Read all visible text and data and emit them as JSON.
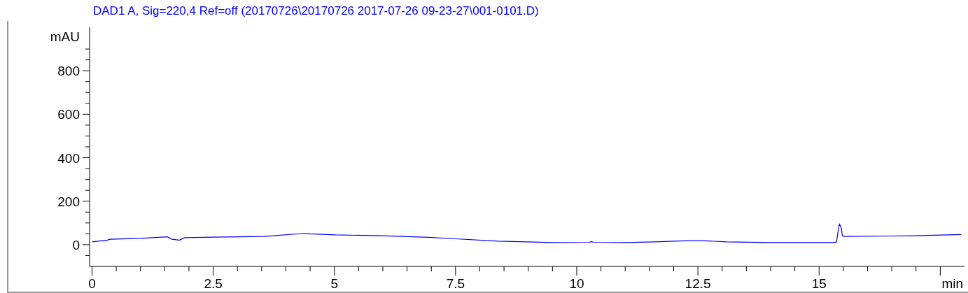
{
  "chart_data": {
    "type": "line",
    "title": "DAD1 A, Sig=220,4 Ref=off (20170726\\20170726 2017-07-26 09-23-27\\001-0101.D)",
    "xlabel": "min",
    "ylabel": "mAU",
    "series": [
      {
        "color": "#0000ff",
        "x": [
          0,
          0.32,
          0.37,
          1.0,
          1.56,
          1.65,
          1.81,
          1.9,
          2.5,
          3.55,
          4.37,
          4.5,
          5.02,
          5.98,
          6.94,
          7.5,
          8.38,
          9.49,
          10.25,
          10.3,
          10.35,
          11.02,
          11.6,
          12.22,
          12.65,
          13.09,
          14.0,
          15.29,
          15.36,
          15.4,
          15.42,
          15.46,
          15.48,
          15.52,
          16.97,
          17.93
        ],
        "values": [
          13,
          21,
          25,
          29,
          36,
          25,
          21,
          32,
          35,
          38,
          52,
          50,
          45,
          41,
          34,
          27,
          16,
          10,
          11,
          14,
          11,
          10,
          13,
          18,
          18,
          13,
          10,
          10,
          12,
          75,
          96,
          75,
          41,
          38,
          41,
          47
        ]
      }
    ],
    "xlim": [
      -0.05,
      18
    ],
    "xticks": [
      0,
      {
        "value": 0.5,
        "label": null
      },
      {
        "value": 1,
        "label": null
      },
      {
        "value": 1.5,
        "label": null
      },
      {
        "value": 2,
        "label": null
      },
      2.5,
      {
        "value": 3,
        "label": null
      },
      {
        "value": 3.5,
        "label": null
      },
      {
        "value": 4,
        "label": null
      },
      {
        "value": 4.5,
        "label": null
      },
      5,
      {
        "value": 5.5,
        "label": null
      },
      {
        "value": 6,
        "label": null
      },
      {
        "value": 6.5,
        "label": null
      },
      {
        "value": 7,
        "label": null
      },
      7.5,
      {
        "value": 8,
        "label": null
      },
      {
        "value": 8.5,
        "label": null
      },
      {
        "value": 9,
        "label": null
      },
      {
        "value": 9.5,
        "label": null
      },
      10,
      {
        "value": 10.5,
        "label": null
      },
      {
        "value": 11,
        "label": null
      },
      {
        "value": 11.5,
        "label": null
      },
      {
        "value": 12,
        "label": null
      },
      12.5,
      {
        "value": 13,
        "label": null
      },
      {
        "value": 13.5,
        "label": null
      },
      {
        "value": 14,
        "label": null
      },
      {
        "value": 14.5,
        "label": null
      },
      15,
      {
        "value": 15.5,
        "label": null
      },
      {
        "value": 16,
        "label": null
      },
      {
        "value": 16.5,
        "label": null
      },
      {
        "value": 17,
        "label": null
      },
      {
        "value": 17.5,
        "label": null
      }
    ],
    "ylim": [
      -100,
      1000
    ],
    "yticks": [
      {
        "value": -50,
        "label": null
      },
      0,
      {
        "value": 50,
        "label": null
      },
      {
        "value": 100,
        "label": null
      },
      {
        "value": 150,
        "label": null
      },
      200,
      {
        "value": 250,
        "label": null
      },
      {
        "value": 300,
        "label": null
      },
      {
        "value": 350,
        "label": null
      },
      400,
      {
        "value": 450,
        "label": null
      },
      {
        "value": 500,
        "label": null
      },
      {
        "value": 550,
        "label": null
      },
      600,
      {
        "value": 650,
        "label": null
      },
      {
        "value": 700,
        "label": null
      },
      {
        "value": 750,
        "label": null
      },
      800,
      {
        "value": 850,
        "label": null
      },
      {
        "value": 900,
        "label": null
      }
    ],
    "grid": false,
    "legend": false,
    "marker": "none",
    "line_style": "solid"
  }
}
